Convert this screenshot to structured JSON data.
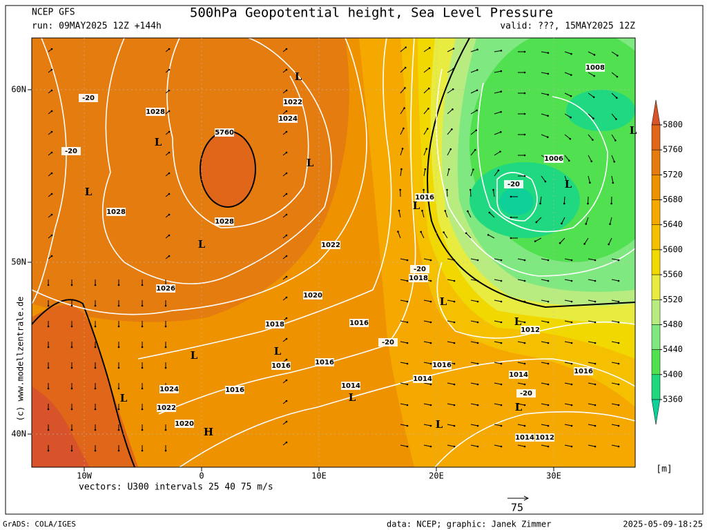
{
  "header": {
    "model": "NCEP GFS",
    "run": "run: 09MAY2025 12Z +144h",
    "title": "500hPa Geopotential height, Sea Level Pressure",
    "valid": "valid: ???, 15MAY2025 12Z"
  },
  "map": {
    "lat_labels": [
      "60N",
      "50N",
      "40N"
    ],
    "lon_labels": [
      "10W",
      "0",
      "10E",
      "20E",
      "30E"
    ],
    "contour_labels": [
      "1028",
      "1022",
      "1024",
      "5760",
      "1028",
      "1028",
      "1026",
      "1022",
      "1020",
      "1018",
      "1016",
      "1016",
      "1016",
      "1014",
      "1016",
      "1024",
      "1022",
      "1020",
      "1016",
      "1018",
      "1016",
      "1014",
      "1012",
      "1014",
      "1016",
      "1006",
      "1008",
      "1014",
      "1012",
      "-20",
      "-20",
      "-20",
      "-20",
      "-20",
      "-20"
    ],
    "pressure_centers": [
      "L",
      "L",
      "L",
      "L",
      "L",
      "L",
      "L",
      "L",
      "L",
      "L",
      "L",
      "L",
      "L",
      "L",
      "L",
      "L",
      "H"
    ],
    "watermark": "(c) www.modellzentrale.de"
  },
  "colorbar": {
    "levels": [
      5800,
      5760,
      5720,
      5680,
      5640,
      5600,
      5560,
      5520,
      5480,
      5440,
      5400,
      5360
    ],
    "colors": [
      "#d9532a",
      "#e0661a",
      "#e57c10",
      "#ef9200",
      "#f5a800",
      "#f5c000",
      "#f0d800",
      "#e8ec40",
      "#b8ec80",
      "#80e880",
      "#50e050",
      "#20d880",
      "#10d09a"
    ],
    "unit": "[m]"
  },
  "footer": {
    "vectors": "vectors: U300 intervals 25 40 75 m/s",
    "vector_scale": "75",
    "software": "GrADS: COLA/IGES",
    "credit": "data: NCEP; graphic: Janek Zimmer",
    "timestamp": "2025-05-09-18:25"
  }
}
